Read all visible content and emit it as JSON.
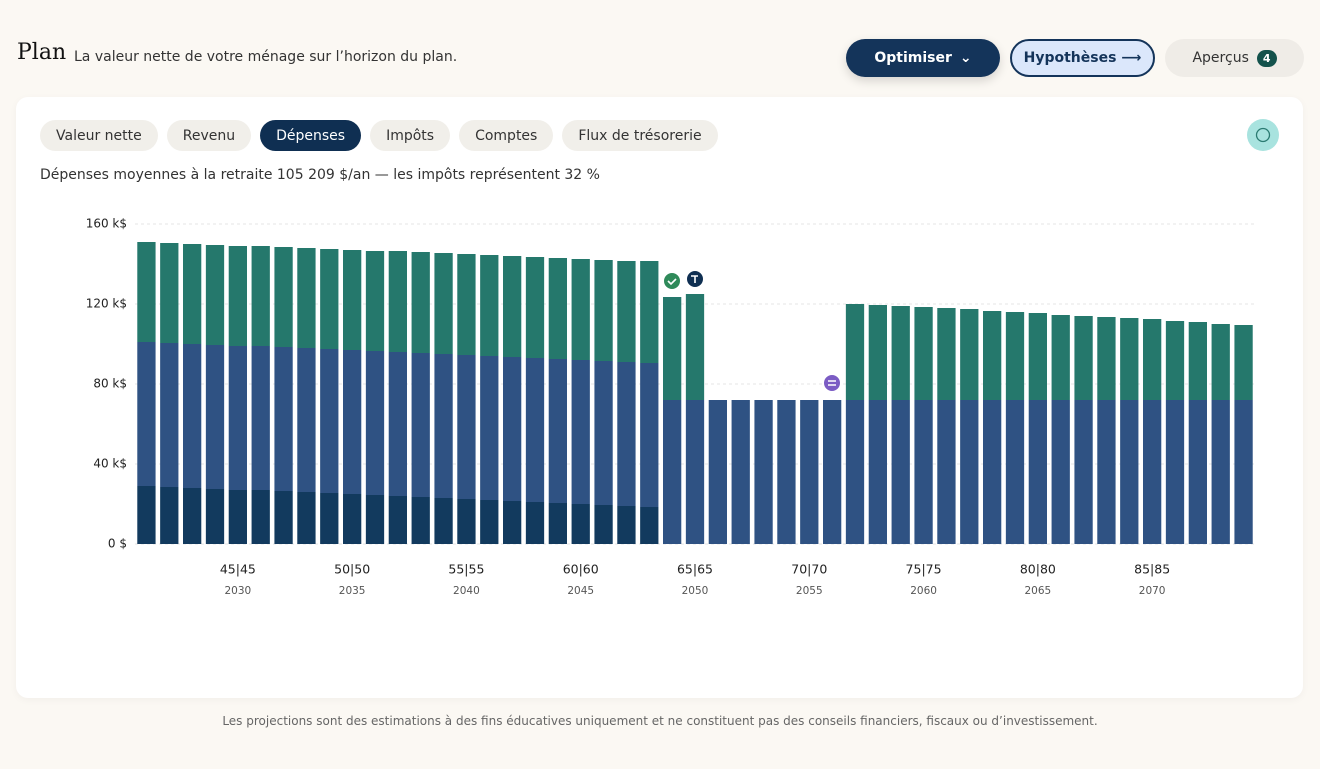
{
  "header": {
    "title": "Plan",
    "subtitle": "La valeur nette de votre ménage sur l’horizon du plan.",
    "buttons": {
      "optimize": "Optimiser",
      "assumptions": "Hypothèses ⟶",
      "insights": "Aperçus",
      "insights_count": 4
    }
  },
  "tabs": [
    "Valeur nette",
    "Revenu",
    "Dépenses",
    "Impôts",
    "Comptes",
    "Flux de trésorerie"
  ],
  "summary": "Dépenses moyennes à la retraite 105 209 $/an — les impôts représentent 32 %",
  "footer": "Les projections sont des estimations à des fins éducatives uniquement et ne constituent pas des conseils financiers, fiscaux ou d’investissement.",
  "chart_data": {
    "type": "stacked_bar",
    "x": [
      2026,
      2027,
      2028,
      2029,
      2030,
      2031,
      2032,
      2033,
      2034,
      2035,
      2036,
      2037,
      2038,
      2039,
      2040,
      2041,
      2042,
      2043,
      2044,
      2045,
      2046,
      2047,
      2048,
      2049,
      2050,
      2051,
      2052,
      2053,
      2054,
      2055,
      2056,
      2057,
      2058,
      2059,
      2060,
      2061,
      2062,
      2063,
      2064,
      2065,
      2066,
      2067,
      2068,
      2069,
      2070,
      2071,
      2072,
      2073,
      2074
    ],
    "xlim": [
      2025.5,
      2074.5
    ],
    "xticks": [
      2030,
      2035,
      2040,
      2045,
      2050,
      2055,
      2060,
      2065,
      2070
    ],
    "xtick_ages": [
      "45|45",
      "50|50",
      "55|55",
      "60|60",
      "65|65",
      "70|70",
      "75|75",
      "80|80",
      "85|85"
    ],
    "ylim": [
      0,
      160
    ],
    "yticks": [
      {
        "value": 0,
        "label": "0 $"
      },
      {
        "value": 40,
        "label": "40 k$"
      },
      {
        "value": 80,
        "label": "80 k$"
      },
      {
        "value": 120,
        "label": "120 k$"
      },
      {
        "value": 160,
        "label": "160 k$"
      }
    ],
    "grid": true,
    "series": [
      {
        "color": "#123a5e",
        "values": [
          29,
          28.5,
          28,
          27.5,
          27,
          27,
          26.5,
          26,
          25.5,
          25,
          24.5,
          24,
          23.5,
          23,
          22.5,
          22,
          21.5,
          21,
          20.5,
          20,
          19.5,
          19,
          18.5,
          0,
          0,
          0,
          0,
          0,
          0,
          0,
          0,
          0,
          0,
          0,
          0,
          0,
          0,
          0,
          0,
          0,
          0,
          0,
          0,
          0,
          0,
          0,
          0,
          0,
          0
        ]
      },
      {
        "color": "#2f5283",
        "values": [
          72,
          72,
          72,
          72,
          72,
          72,
          72,
          72,
          72,
          72,
          72,
          72,
          72,
          72,
          72,
          72,
          72,
          72,
          72,
          72,
          72,
          72,
          72,
          72,
          72,
          72,
          72,
          72,
          72,
          72,
          72,
          72,
          72,
          72,
          72,
          72,
          72,
          72,
          72,
          72,
          72,
          72,
          72,
          72,
          72,
          72,
          72,
          72,
          72
        ]
      },
      {
        "color": "#25786c",
        "values": [
          50,
          50,
          50,
          50,
          50,
          50,
          50,
          50,
          50,
          50,
          50,
          50.5,
          50.5,
          50.5,
          50.5,
          50.5,
          50.5,
          50.5,
          50.5,
          50.5,
          50.5,
          50.5,
          51,
          51.5,
          53,
          0,
          0,
          0,
          0,
          0,
          0,
          48,
          47.5,
          47,
          46.5,
          46,
          45.5,
          44.5,
          44,
          43.5,
          42.5,
          42,
          41.5,
          41,
          40.5,
          39.5,
          39,
          38,
          37.5
        ]
      }
    ]
  }
}
